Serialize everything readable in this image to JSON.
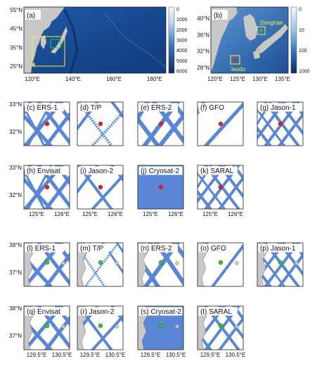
{
  "overview": {
    "a": {
      "label": "(a)",
      "lat_ticks": [
        "55°N",
        "45°N",
        "35°N",
        "25°N"
      ],
      "lon_ticks": [
        "120°E",
        "140°E",
        "160°E",
        "180°E"
      ],
      "colorbar_ticks": [
        "0",
        "1000",
        "2000",
        "3000",
        "4000",
        "5000",
        "6000"
      ],
      "colorbar_colors": [
        "#f4f8fc",
        "#0f2a5a"
      ]
    },
    "b": {
      "label": "(b)",
      "lat_ticks": [
        "40°N",
        "36°N",
        "32°N",
        "28°N"
      ],
      "lon_ticks": [
        "120°E",
        "125°E",
        "130°E",
        "135°E"
      ],
      "colorbar_ticks": [
        "0",
        "10",
        "100",
        "1000"
      ],
      "sites": [
        {
          "name": "Donghae",
          "color": "#3cbf3c"
        },
        {
          "name": "Ieodo",
          "color": "#e02020"
        }
      ]
    }
  },
  "sections": {
    "ieodo": {
      "lat_ticks": [
        "33°N",
        "32°N"
      ],
      "lon_ticks": [
        "125°E",
        "126°E"
      ],
      "site_color": "#e02020"
    },
    "donghae": {
      "lat_ticks": [
        "38°N",
        "37°N"
      ],
      "lon_ticks": [
        "129.5°E",
        "130.5°E"
      ],
      "site_color": "#3cbf3c"
    }
  },
  "track_color": "#5b86d6",
  "panels": [
    {
      "id": "c",
      "label": "(c) ERS-1",
      "section": "ieodo"
    },
    {
      "id": "d",
      "label": "(d) T/P",
      "section": "ieodo"
    },
    {
      "id": "e",
      "label": "(e) ERS-2",
      "section": "ieodo"
    },
    {
      "id": "f",
      "label": "(f) GFO",
      "section": "ieodo"
    },
    {
      "id": "g",
      "label": "(g) Jason-1",
      "section": "ieodo"
    },
    {
      "id": "h",
      "label": "(h) Envisat",
      "section": "ieodo"
    },
    {
      "id": "i",
      "label": "(i) Jason-2",
      "section": "ieodo"
    },
    {
      "id": "j",
      "label": "(j) Cryosat-2",
      "section": "ieodo"
    },
    {
      "id": "k",
      "label": "(k) SARAL",
      "section": "ieodo"
    },
    {
      "id": "l",
      "label": "(l) ERS-1",
      "section": "donghae"
    },
    {
      "id": "m",
      "label": "(m) T/P",
      "section": "donghae"
    },
    {
      "id": "n",
      "label": "(n) ERS-2",
      "section": "donghae"
    },
    {
      "id": "o",
      "label": "(o) GFO",
      "section": "donghae"
    },
    {
      "id": "p",
      "label": "(p) Jason-1",
      "section": "donghae"
    },
    {
      "id": "q",
      "label": "(q) Envisat",
      "section": "donghae"
    },
    {
      "id": "r",
      "label": "(r) Jason-2",
      "section": "donghae"
    },
    {
      "id": "s",
      "label": "(s) Cryosat-2",
      "section": "donghae"
    },
    {
      "id": "t",
      "label": "(t) SARAL",
      "section": "donghae"
    }
  ]
}
